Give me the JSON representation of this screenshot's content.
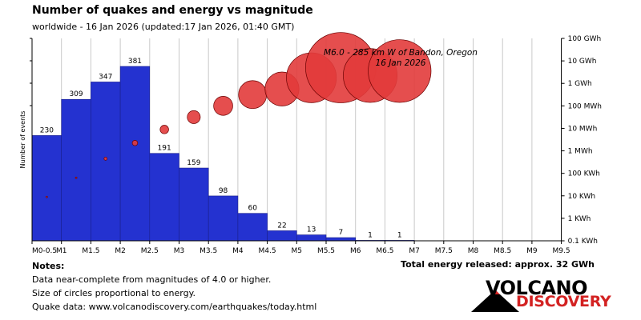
{
  "header": {
    "title": "Number of quakes and energy vs magnitude",
    "subtitle": "worldwide - 16 Jan 2026 (updated:17 Jan 2026, 01:40 GMT)"
  },
  "chart_data": {
    "type": "bar",
    "ylabel": "Number of events",
    "categories": [
      "M0-0.5",
      "M1",
      "M1.5",
      "M2",
      "M2.5",
      "M3",
      "M3.5",
      "M4",
      "M4.5",
      "M5",
      "M5.5",
      "M6",
      "M6.5",
      "M7",
      "M7.5",
      "M8",
      "M8.5",
      "M9",
      "M9.5"
    ],
    "bars": [
      {
        "bin": 0,
        "count": 230
      },
      {
        "bin": 1,
        "count": 309
      },
      {
        "bin": 2,
        "count": 347
      },
      {
        "bin": 3,
        "count": 381
      },
      {
        "bin": 4,
        "count": 191
      },
      {
        "bin": 5,
        "count": 159
      },
      {
        "bin": 6,
        "count": 98
      },
      {
        "bin": 7,
        "count": 60
      },
      {
        "bin": 8,
        "count": 22
      },
      {
        "bin": 9,
        "count": 13
      },
      {
        "bin": 10,
        "count": 7
      },
      {
        "bin": 11,
        "count": 1
      },
      {
        "bin": 12,
        "count": 1
      }
    ],
    "energy_axis": {
      "ticks": [
        "0.1 KWh",
        "1 KWh",
        "10 KWh",
        "100 KWh",
        "1 MWh",
        "10 MWh",
        "100 MWh",
        "1 GWh",
        "10 GWh",
        "100 GWh"
      ]
    },
    "energy_circles": [
      {
        "bin": 0,
        "log_energy": 1.95
      },
      {
        "bin": 1,
        "log_energy": 2.8
      },
      {
        "bin": 2,
        "log_energy": 3.65
      },
      {
        "bin": 3,
        "log_energy": 4.35
      },
      {
        "bin": 4,
        "log_energy": 4.95
      },
      {
        "bin": 5,
        "log_energy": 5.5
      },
      {
        "bin": 6,
        "log_energy": 6.0
      },
      {
        "bin": 7,
        "log_energy": 6.5
      },
      {
        "bin": 8,
        "log_energy": 6.75
      },
      {
        "bin": 9,
        "log_energy": 7.25
      },
      {
        "bin": 10,
        "log_energy": 7.7
      },
      {
        "bin": 11,
        "log_energy": 7.35
      },
      {
        "bin": 12,
        "log_energy": 7.55
      }
    ],
    "annotation": [
      "M6.0 - 285 km W of Bandon, Oregon",
      "16 Jan 2026"
    ],
    "colors": {
      "bar": "#2432d0",
      "bar_edge": "#1a1f8a",
      "circle": "#e23b3b",
      "circle_edge": "#6b0000"
    }
  },
  "notes": {
    "heading": "Notes:",
    "line1": "Data near-complete from magnitudes of 4.0 or higher.",
    "line2": "Size of circles proportional to energy.",
    "line3": "Quake data: www.volcanodiscovery.com/earthquakes/today.html"
  },
  "total_energy": "Total energy released: approx. 32 GWh",
  "logo": {
    "line1": "VOLCANO",
    "line2": "DISCOVERY"
  }
}
